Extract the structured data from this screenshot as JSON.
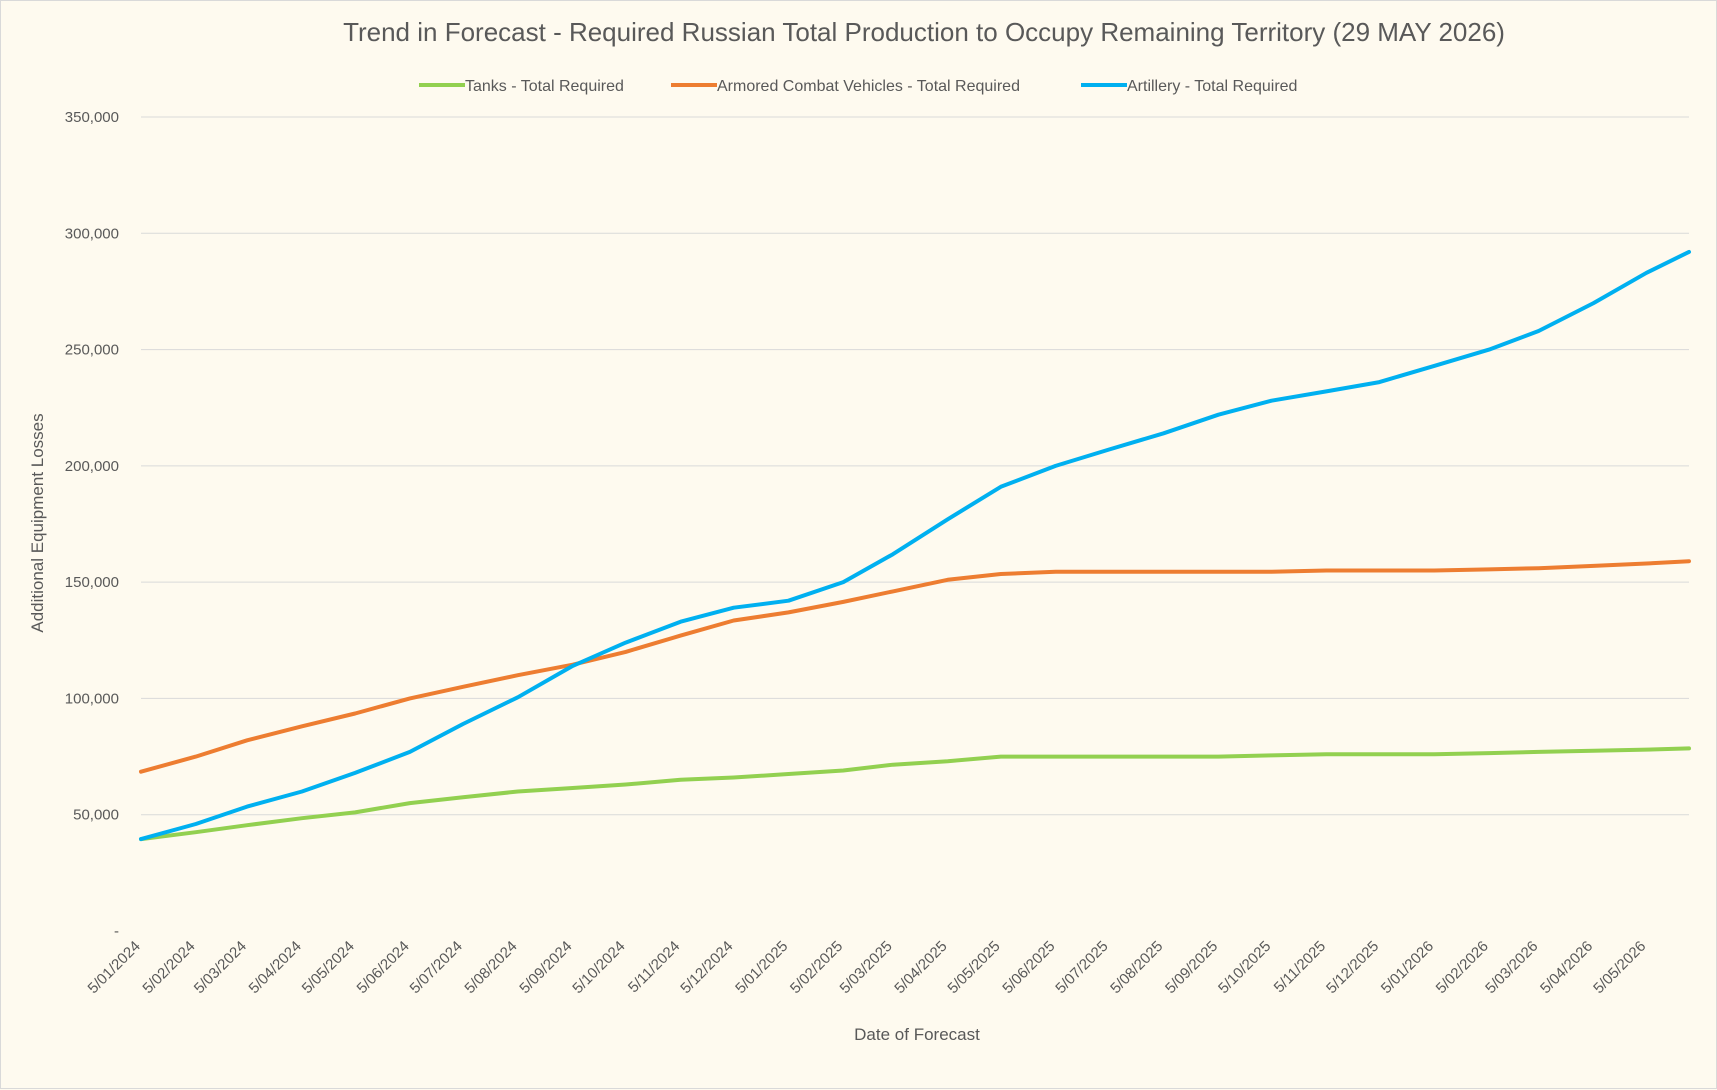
{
  "chart_data": {
    "type": "line",
    "title": "Trend in Forecast - Required Russian Total Production to Occupy Remaining Territory (29 MAY 2026)",
    "xlabel": "Date of Forecast",
    "ylabel": "Additional Equipment Losses",
    "ylim": [
      0,
      350000
    ],
    "yticks": [
      0,
      50000,
      100000,
      150000,
      200000,
      250000,
      300000,
      350000
    ],
    "ytick_labels": [
      "-",
      "50,000",
      "100,000",
      "150,000",
      "200,000",
      "250,000",
      "300,000",
      "350,000"
    ],
    "x_tick_labels": [
      "5/01/2024",
      "5/02/2024",
      "5/03/2024",
      "5/04/2024",
      "5/05/2024",
      "5/06/2024",
      "5/07/2024",
      "5/08/2024",
      "5/09/2024",
      "5/10/2024",
      "5/11/2024",
      "5/12/2024",
      "5/01/2025",
      "5/02/2025",
      "5/03/2025",
      "5/04/2025",
      "5/05/2025",
      "5/06/2025",
      "5/07/2025",
      "5/08/2025",
      "5/09/2025",
      "5/10/2025",
      "5/11/2025",
      "5/12/2025",
      "5/01/2026",
      "5/02/2026",
      "5/03/2026",
      "5/04/2026",
      "5/05/2026"
    ],
    "x_end": "29/05/2026",
    "grid": true,
    "legend_position": "top",
    "series": [
      {
        "name": "Tanks - Total Required",
        "color": "#92d050",
        "x": [
          "5/01/2024",
          "5/02/2024",
          "5/03/2024",
          "5/04/2024",
          "5/05/2024",
          "5/06/2024",
          "5/07/2024",
          "5/08/2024",
          "5/09/2024",
          "5/10/2024",
          "5/11/2024",
          "5/12/2024",
          "5/01/2025",
          "5/02/2025",
          "5/03/2025",
          "5/04/2025",
          "5/05/2025",
          "5/06/2025",
          "5/07/2025",
          "5/08/2025",
          "5/09/2025",
          "5/10/2025",
          "5/11/2025",
          "5/12/2025",
          "5/01/2026",
          "5/02/2026",
          "5/03/2026",
          "5/04/2026",
          "5/05/2026",
          "29/05/2026"
        ],
        "values": [
          39500,
          42500,
          45500,
          48500,
          51000,
          55000,
          57500,
          60000,
          61500,
          63000,
          65000,
          66000,
          67500,
          69000,
          71500,
          73000,
          75000,
          75000,
          75000,
          75000,
          75000,
          75500,
          76000,
          76000,
          76000,
          76500,
          77000,
          77500,
          78000,
          78500
        ]
      },
      {
        "name": "Armored Combat Vehicles - Total Required",
        "color": "#ed7d31",
        "x": [
          "5/01/2024",
          "5/02/2024",
          "5/03/2024",
          "5/04/2024",
          "5/05/2024",
          "5/06/2024",
          "5/07/2024",
          "5/08/2024",
          "5/09/2024",
          "5/10/2024",
          "5/11/2024",
          "5/12/2024",
          "5/01/2025",
          "5/02/2025",
          "5/03/2025",
          "5/04/2025",
          "5/05/2025",
          "5/06/2025",
          "5/07/2025",
          "5/08/2025",
          "5/09/2025",
          "5/10/2025",
          "5/11/2025",
          "5/12/2025",
          "5/01/2026",
          "5/02/2026",
          "5/03/2026",
          "5/04/2026",
          "5/05/2026",
          "29/05/2026"
        ],
        "values": [
          68500,
          75000,
          82000,
          88000,
          93500,
          100000,
          105000,
          110000,
          114500,
          120000,
          127000,
          133500,
          137000,
          141500,
          146000,
          151000,
          153500,
          154500,
          154500,
          154500,
          154500,
          154500,
          155000,
          155000,
          155000,
          155500,
          156000,
          157000,
          158000,
          159000
        ]
      },
      {
        "name": "Artillery - Total Required",
        "color": "#00b0f0",
        "x": [
          "5/01/2024",
          "5/02/2024",
          "5/03/2024",
          "5/04/2024",
          "5/05/2024",
          "5/06/2024",
          "5/07/2024",
          "5/08/2024",
          "5/09/2024",
          "5/10/2024",
          "5/11/2024",
          "5/12/2024",
          "5/01/2025",
          "5/02/2025",
          "5/03/2025",
          "5/04/2025",
          "5/05/2025",
          "5/06/2025",
          "5/07/2025",
          "5/08/2025",
          "5/09/2025",
          "5/10/2025",
          "5/11/2025",
          "5/12/2025",
          "5/01/2026",
          "5/02/2026",
          "5/03/2026",
          "5/04/2026",
          "5/05/2026",
          "29/05/2026"
        ],
        "values": [
          39500,
          46000,
          53500,
          60000,
          68000,
          77000,
          89000,
          100500,
          114000,
          124000,
          133000,
          139000,
          142000,
          150000,
          162000,
          177000,
          191000,
          200000,
          207000,
          214000,
          222000,
          228000,
          232000,
          236000,
          243000,
          250000,
          258000,
          270000,
          283000,
          292000
        ]
      }
    ]
  }
}
